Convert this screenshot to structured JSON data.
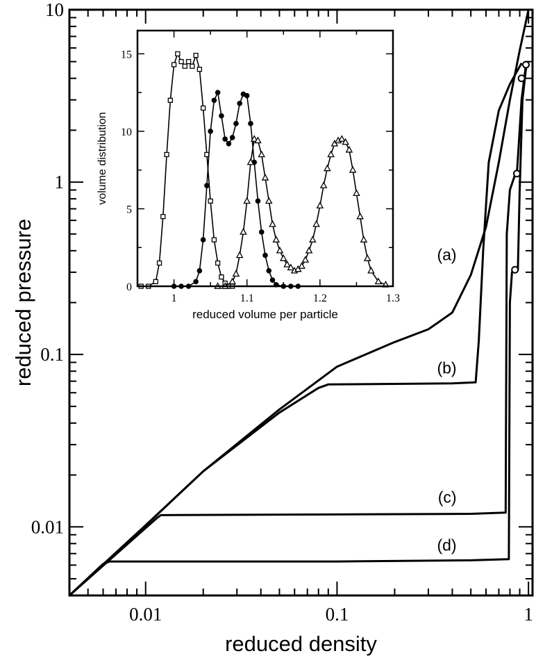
{
  "chart_data": [
    {
      "type": "line",
      "xlabel": "reduced density",
      "ylabel": "reduced pressure",
      "xscale": "log",
      "yscale": "log",
      "xlim": [
        0.004,
        1.05
      ],
      "ylim": [
        0.004,
        10
      ],
      "x_ticks": [
        0.01,
        0.1,
        1
      ],
      "x_tick_labels": [
        "0.01",
        "0.1",
        "1"
      ],
      "y_ticks": [
        0.01,
        0.1,
        1,
        10
      ],
      "y_tick_labels": [
        "0.01",
        "0.1",
        "1",
        "10"
      ],
      "series": [
        {
          "name": "(a)",
          "points": [
            [
              0.004,
              0.004
            ],
            [
              0.01,
              0.0102
            ],
            [
              0.02,
              0.021
            ],
            [
              0.05,
              0.048
            ],
            [
              0.1,
              0.085
            ],
            [
              0.2,
              0.118
            ],
            [
              0.3,
              0.14
            ],
            [
              0.4,
              0.175
            ],
            [
              0.5,
              0.29
            ],
            [
              0.6,
              0.55
            ],
            [
              0.7,
              1.3
            ],
            [
              0.8,
              3.0
            ],
            [
              0.9,
              5.8
            ],
            [
              1.0,
              10
            ]
          ]
        },
        {
          "name": "(b)",
          "points": [
            [
              0.004,
              0.004
            ],
            [
              0.01,
              0.0102
            ],
            [
              0.02,
              0.021
            ],
            [
              0.05,
              0.046
            ],
            [
              0.08,
              0.064
            ],
            [
              0.09,
              0.067
            ],
            [
              0.2,
              0.0675
            ],
            [
              0.4,
              0.068
            ],
            [
              0.53,
              0.069
            ],
            [
              0.55,
              0.12
            ],
            [
              0.58,
              0.4
            ],
            [
              0.62,
              1.3
            ],
            [
              0.7,
              2.6
            ],
            [
              0.8,
              3.7
            ],
            [
              0.92,
              4.9
            ]
          ]
        },
        {
          "name": "(c)",
          "points": [
            [
              0.004,
              0.004
            ],
            [
              0.0115,
              0.0113
            ],
            [
              0.012,
              0.0117
            ],
            [
              0.1,
              0.0118
            ],
            [
              0.5,
              0.0119
            ],
            [
              0.76,
              0.0121
            ],
            [
              0.77,
              0.5
            ],
            [
              0.8,
              0.9
            ],
            [
              0.85,
              1.1
            ],
            [
              0.87,
              1.12
            ],
            [
              0.92,
              3.0
            ],
            [
              0.97,
              4.8
            ]
          ]
        },
        {
          "name": "(d)",
          "points": [
            [
              0.004,
              0.004
            ],
            [
              0.006,
              0.0061
            ],
            [
              0.0065,
              0.0063
            ],
            [
              0.1,
              0.0063
            ],
            [
              0.5,
              0.0064
            ],
            [
              0.79,
              0.0065
            ],
            [
              0.8,
              0.2
            ],
            [
              0.82,
              0.3
            ],
            [
              0.88,
              0.31
            ],
            [
              0.9,
              0.9
            ],
            [
              0.93,
              3.0
            ],
            [
              0.98,
              5.0
            ]
          ]
        }
      ],
      "markers": [
        {
          "x": 0.97,
          "y": 4.8
        },
        {
          "x": 0.92,
          "y": 4.0
        },
        {
          "x": 0.87,
          "y": 1.12
        },
        {
          "x": 0.85,
          "y": 0.31
        }
      ]
    },
    {
      "type": "line",
      "xlabel": "reduced volume per particle",
      "ylabel": "volume distribution",
      "xlim": [
        0.95,
        1.3
      ],
      "ylim": [
        0,
        16.5
      ],
      "x_ticks": [
        1,
        1.1,
        1.2,
        1.3
      ],
      "x_tick_labels": [
        "1",
        "1.1",
        "1.2",
        "1.3"
      ],
      "y_ticks": [
        0,
        5,
        10,
        15
      ],
      "y_tick_labels": [
        "0",
        "5",
        "10",
        "15"
      ],
      "series": [
        {
          "marker": "open-square",
          "x": [
            0.955,
            0.965,
            0.975,
            0.98,
            0.985,
            0.99,
            0.995,
            1.0,
            1.005,
            1.01,
            1.015,
            1.02,
            1.025,
            1.03,
            1.035,
            1.04,
            1.045,
            1.05,
            1.055,
            1.06,
            1.065,
            1.07,
            1.075,
            1.08
          ],
          "y": [
            0,
            0,
            0.3,
            1.5,
            4.5,
            8.5,
            12.0,
            14.3,
            15.0,
            14.5,
            14.2,
            14.5,
            14.2,
            14.9,
            14.0,
            11.5,
            8.5,
            5.5,
            3.0,
            1.5,
            0.6,
            0.2,
            0,
            0
          ]
        },
        {
          "marker": "filled-circle",
          "x": [
            1.0,
            1.01,
            1.02,
            1.03,
            1.035,
            1.04,
            1.045,
            1.05,
            1.055,
            1.06,
            1.065,
            1.07,
            1.075,
            1.08,
            1.085,
            1.09,
            1.095,
            1.1,
            1.105,
            1.11,
            1.115,
            1.12,
            1.125,
            1.13,
            1.135,
            1.14,
            1.15,
            1.16,
            1.17
          ],
          "y": [
            0,
            0,
            0,
            0.3,
            1.0,
            3.0,
            6.5,
            10.0,
            12.0,
            12.5,
            11.0,
            9.5,
            9.2,
            9.6,
            10.5,
            11.8,
            12.4,
            12.3,
            10.5,
            8.0,
            5.5,
            3.5,
            2.0,
            1.0,
            0.4,
            0.1,
            0,
            0,
            0
          ]
        },
        {
          "marker": "open-triangle",
          "x": [
            1.06,
            1.07,
            1.08,
            1.085,
            1.09,
            1.095,
            1.1,
            1.105,
            1.11,
            1.115,
            1.12,
            1.125,
            1.13,
            1.135,
            1.14,
            1.145,
            1.15,
            1.155,
            1.16,
            1.165,
            1.17,
            1.175,
            1.18,
            1.185,
            1.19,
            1.195,
            1.2,
            1.205,
            1.21,
            1.215,
            1.22,
            1.225,
            1.23,
            1.235,
            1.24,
            1.245,
            1.25,
            1.255,
            1.26,
            1.265,
            1.27,
            1.28,
            1.29
          ],
          "y": [
            0,
            0,
            0.3,
            0.8,
            2.0,
            3.5,
            5.5,
            8.0,
            9.5,
            9.4,
            8.5,
            7.0,
            5.5,
            4.0,
            3.0,
            2.3,
            1.8,
            1.4,
            1.2,
            1.0,
            1.1,
            1.3,
            1.7,
            2.3,
            3.0,
            4.0,
            5.2,
            6.5,
            7.6,
            8.5,
            9.2,
            9.4,
            9.5,
            9.3,
            8.8,
            7.5,
            6.0,
            4.5,
            3.0,
            1.8,
            1.0,
            0.3,
            0.1
          ]
        }
      ]
    }
  ]
}
